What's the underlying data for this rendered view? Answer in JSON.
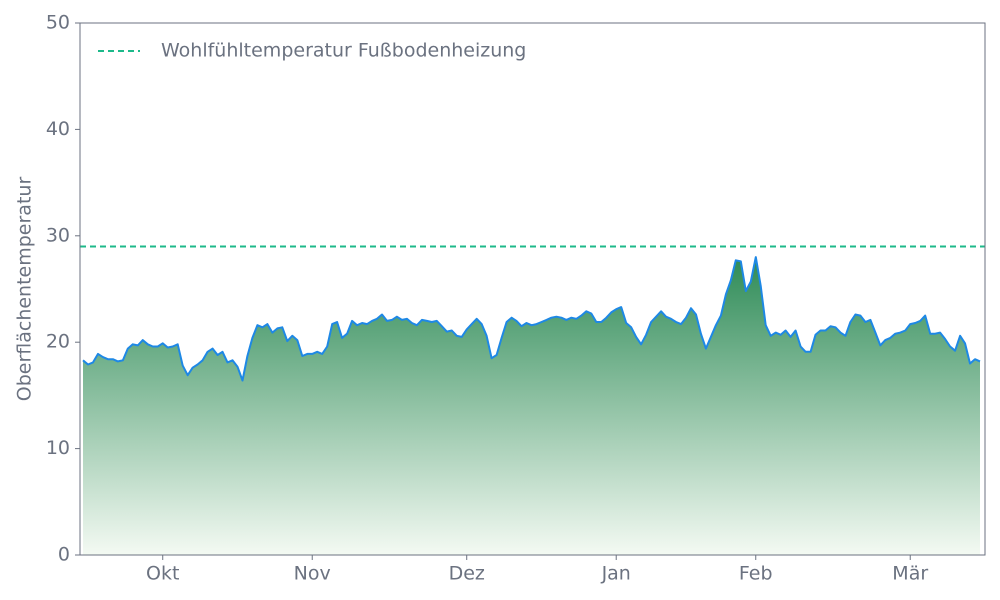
{
  "chart_data": {
    "type": "area",
    "y_label": "Oberflächentemperatur",
    "categories": [
      null,
      null,
      null,
      null,
      null,
      null,
      null,
      null,
      null,
      null,
      null,
      null,
      null,
      null,
      null,
      null,
      "Okt",
      null,
      null,
      null,
      null,
      null,
      null,
      null,
      null,
      null,
      null,
      null,
      null,
      null,
      null,
      null,
      null,
      null,
      null,
      null,
      null,
      null,
      null,
      null,
      null,
      null,
      null,
      null,
      null,
      null,
      "Nov",
      null,
      null,
      null,
      null,
      null,
      null,
      null,
      null,
      null,
      null,
      null,
      null,
      null,
      null,
      null,
      null,
      null,
      null,
      null,
      null,
      null,
      null,
      null,
      null,
      null,
      null,
      null,
      null,
      null,
      null,
      "Dez",
      null,
      null,
      null,
      null,
      null,
      null,
      null,
      null,
      null,
      null,
      null,
      null,
      null,
      null,
      null,
      null,
      null,
      null,
      null,
      null,
      null,
      null,
      null,
      null,
      null,
      null,
      null,
      null,
      null,
      "Jan",
      null,
      null,
      null,
      null,
      null,
      null,
      null,
      null,
      null,
      null,
      null,
      null,
      null,
      null,
      null,
      null,
      null,
      null,
      null,
      null,
      null,
      null,
      null,
      null,
      null,
      null,
      null,
      "Feb",
      null,
      null,
      null,
      null,
      null,
      null,
      null,
      null,
      null,
      null,
      null,
      null,
      null,
      null,
      null,
      null,
      null,
      null,
      null,
      null,
      null,
      null,
      null,
      null,
      null,
      null,
      null,
      null,
      null,
      null,
      "Mär",
      null,
      null,
      null,
      null,
      null,
      null,
      null,
      null,
      null,
      null,
      null,
      null,
      null,
      null
    ],
    "values": [
      18.3,
      17.9,
      18.1,
      18.9,
      18.6,
      18.4,
      18.4,
      18.2,
      18.3,
      19.4,
      19.8,
      19.7,
      20.2,
      19.8,
      19.6,
      19.6,
      19.9,
      19.5,
      19.6,
      19.8,
      17.8,
      16.9,
      17.6,
      17.9,
      18.3,
      19.1,
      19.4,
      18.8,
      19.1,
      18.1,
      18.3,
      17.7,
      16.4,
      18.7,
      20.4,
      21.6,
      21.4,
      21.7,
      20.9,
      21.3,
      21.4,
      20.1,
      20.6,
      20.2,
      18.7,
      18.9,
      18.9,
      19.1,
      18.9,
      19.6,
      21.7,
      21.9,
      20.4,
      20.8,
      22.0,
      21.6,
      21.8,
      21.7,
      22.0,
      22.2,
      22.6,
      22.0,
      22.1,
      22.4,
      22.1,
      22.2,
      21.8,
      21.6,
      22.1,
      22.0,
      21.9,
      22.0,
      21.5,
      21.0,
      21.1,
      20.6,
      20.5,
      21.2,
      21.7,
      22.2,
      21.7,
      20.6,
      18.5,
      18.8,
      20.4,
      21.9,
      22.3,
      22.0,
      21.5,
      21.8,
      21.6,
      21.7,
      21.9,
      22.1,
      22.3,
      22.4,
      22.3,
      22.1,
      22.3,
      22.2,
      22.5,
      22.9,
      22.7,
      21.9,
      21.9,
      22.3,
      22.8,
      23.1,
      23.3,
      21.8,
      21.4,
      20.5,
      19.8,
      20.7,
      21.9,
      22.4,
      22.9,
      22.4,
      22.2,
      21.9,
      21.7,
      22.3,
      23.2,
      22.6,
      20.8,
      19.4,
      20.5,
      21.6,
      22.5,
      24.5,
      25.8,
      27.7,
      27.6,
      24.8,
      25.7,
      28.0,
      25.3,
      21.6,
      20.6,
      20.9,
      20.7,
      21.1,
      20.5,
      21.1,
      19.6,
      19.1,
      19.1,
      20.7,
      21.1,
      21.1,
      21.5,
      21.4,
      20.9,
      20.6,
      21.9,
      22.6,
      22.5,
      21.9,
      22.1,
      20.9,
      19.7,
      20.2,
      20.4,
      20.8,
      20.9,
      21.1,
      21.7,
      21.8,
      22.0,
      22.5,
      20.8,
      20.8,
      20.9,
      20.3,
      19.6,
      19.2,
      20.6,
      19.9,
      18.0,
      18.4,
      18.2
    ],
    "color": "#1e88e5",
    "fill_gradient": [
      "#2e8b57",
      "#f4faf3"
    ],
    "reference_line": {
      "name": "Wohlfühltemperatur Fußbodenheizung",
      "value": 29,
      "color": "#1db98a"
    },
    "legend_position": "upper left",
    "ylim": [
      0,
      50
    ],
    "yticks": [
      0,
      10,
      20,
      30,
      40,
      50
    ],
    "grid": false
  }
}
